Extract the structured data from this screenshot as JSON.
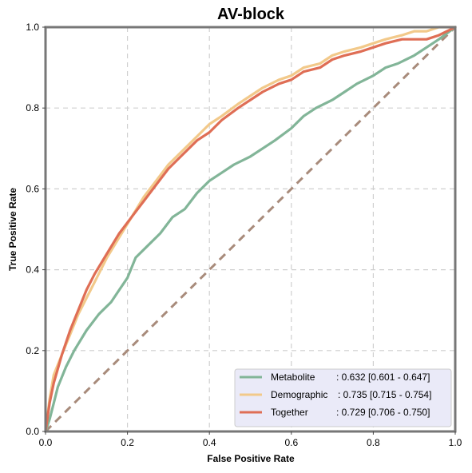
{
  "chart_data": {
    "type": "line",
    "title": "AV-block",
    "xlabel": "False Positive Rate",
    "ylabel": "True Positive Rate",
    "xlim": [
      0,
      1
    ],
    "ylim": [
      0,
      1
    ],
    "x_ticks": [
      "0.0",
      "0.2",
      "0.4",
      "0.6",
      "0.8",
      "1.0"
    ],
    "y_ticks": [
      "0.0",
      "0.2",
      "0.4",
      "0.6",
      "0.8",
      "1.0"
    ],
    "grid": true,
    "legend_position": "lower-right",
    "reference_line": {
      "x": [
        0,
        1
      ],
      "y": [
        0,
        1
      ],
      "color": "#a88b7b",
      "style": "dashed"
    },
    "series": [
      {
        "name": "Metabolite",
        "label": ": 0.632 [0.601 - 0.647]",
        "color": "#82b598",
        "x": [
          0,
          0.01,
          0.02,
          0.03,
          0.05,
          0.07,
          0.1,
          0.13,
          0.16,
          0.18,
          0.2,
          0.22,
          0.25,
          0.28,
          0.31,
          0.34,
          0.37,
          0.4,
          0.43,
          0.46,
          0.5,
          0.53,
          0.56,
          0.6,
          0.63,
          0.66,
          0.7,
          0.73,
          0.76,
          0.8,
          0.83,
          0.86,
          0.9,
          0.93,
          0.96,
          1.0
        ],
        "y": [
          0,
          0.03,
          0.07,
          0.11,
          0.16,
          0.2,
          0.25,
          0.29,
          0.32,
          0.35,
          0.38,
          0.43,
          0.46,
          0.49,
          0.53,
          0.55,
          0.59,
          0.62,
          0.64,
          0.66,
          0.68,
          0.7,
          0.72,
          0.75,
          0.78,
          0.8,
          0.82,
          0.84,
          0.86,
          0.88,
          0.9,
          0.91,
          0.93,
          0.95,
          0.97,
          1.0
        ]
      },
      {
        "name": "Demographic",
        "label": ": 0.735 [0.715 - 0.754]",
        "color": "#f2c98a",
        "x": [
          0,
          0.01,
          0.02,
          0.04,
          0.06,
          0.08,
          0.1,
          0.12,
          0.15,
          0.18,
          0.21,
          0.24,
          0.27,
          0.3,
          0.33,
          0.37,
          0.4,
          0.43,
          0.47,
          0.5,
          0.53,
          0.57,
          0.6,
          0.63,
          0.67,
          0.7,
          0.73,
          0.77,
          0.8,
          0.83,
          0.87,
          0.9,
          0.93,
          0.96,
          1.0
        ],
        "y": [
          0,
          0.08,
          0.14,
          0.19,
          0.24,
          0.29,
          0.33,
          0.37,
          0.43,
          0.48,
          0.53,
          0.58,
          0.62,
          0.66,
          0.69,
          0.73,
          0.76,
          0.78,
          0.81,
          0.83,
          0.85,
          0.87,
          0.88,
          0.9,
          0.91,
          0.93,
          0.94,
          0.95,
          0.96,
          0.97,
          0.98,
          0.99,
          0.99,
          1.0,
          1.0
        ]
      },
      {
        "name": "Together",
        "label": ": 0.729 [0.706 - 0.750]",
        "color": "#df6e55",
        "x": [
          0,
          0.01,
          0.02,
          0.04,
          0.06,
          0.08,
          0.1,
          0.12,
          0.15,
          0.18,
          0.21,
          0.24,
          0.27,
          0.3,
          0.33,
          0.37,
          0.4,
          0.43,
          0.47,
          0.5,
          0.53,
          0.57,
          0.6,
          0.63,
          0.67,
          0.7,
          0.73,
          0.77,
          0.8,
          0.83,
          0.87,
          0.9,
          0.93,
          0.96,
          1.0
        ],
        "y": [
          0,
          0.07,
          0.12,
          0.19,
          0.25,
          0.3,
          0.35,
          0.39,
          0.44,
          0.49,
          0.53,
          0.57,
          0.61,
          0.65,
          0.68,
          0.72,
          0.74,
          0.77,
          0.8,
          0.82,
          0.84,
          0.86,
          0.87,
          0.89,
          0.9,
          0.92,
          0.93,
          0.94,
          0.95,
          0.96,
          0.97,
          0.97,
          0.97,
          0.98,
          1.0
        ]
      }
    ],
    "colors": {
      "grid": "#cfcfcf",
      "frame": "#777777",
      "legend_background": "#eaeaf8",
      "legend_border": "#cccccc"
    }
  }
}
